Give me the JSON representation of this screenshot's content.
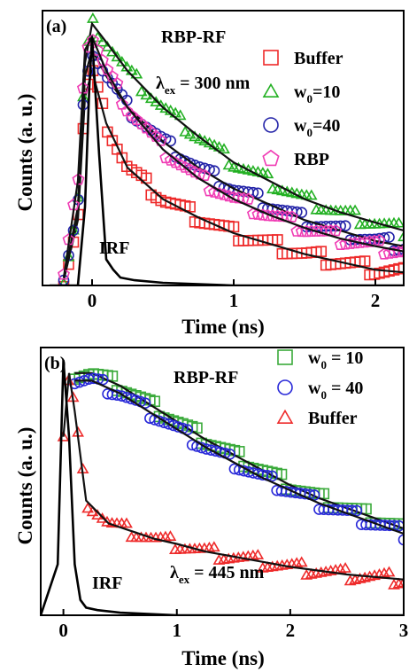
{
  "figure": {
    "panels": [
      {
        "panel_label": "(a)",
        "title": "RBP-RF",
        "excitation": {
          "lambda": "λ",
          "sub": "ex",
          "value": " = 300 nm"
        },
        "irf_label": "IRF",
        "xlabel": "Time (ns)",
        "ylabel": "Counts (a. u.)",
        "x_ticks": [
          "0",
          "1",
          "2"
        ],
        "legend": [
          {
            "label": "Buffer",
            "marker": "square",
            "color": "#ee2a2a"
          },
          {
            "label": "w",
            "sub": "0",
            "tail": "=10",
            "marker": "triangle",
            "color": "#22b022"
          },
          {
            "label": "w",
            "sub": "0",
            "tail": "=40",
            "marker": "circle",
            "color": "#2323a8"
          },
          {
            "label": "RBP",
            "marker": "pentagon",
            "color": "#f03cb4"
          }
        ]
      },
      {
        "panel_label": "(b)",
        "title": "RBP-RF",
        "excitation": {
          "lambda": "λ",
          "sub": "ex",
          "value": " = 445 nm"
        },
        "irf_label": "IRF",
        "xlabel": "Time (ns)",
        "ylabel": "Counts (a. u.)",
        "x_ticks": [
          "0",
          "1",
          "2",
          "3"
        ],
        "legend": [
          {
            "label": "w",
            "sub": "0",
            "tail": " = 10",
            "marker": "square",
            "color": "#3aaa3a"
          },
          {
            "label": "w",
            "sub": "0",
            "tail": " = 40",
            "marker": "circle",
            "color": "#2828d8"
          },
          {
            "label": "Buffer",
            "marker": "triangle",
            "color": "#ee2a2a"
          }
        ]
      }
    ]
  },
  "chart_data": [
    {
      "type": "scatter",
      "xlabel": "Time (ns)",
      "ylabel": "Counts (a. u.)",
      "xlim": [
        -0.35,
        2.2
      ],
      "ylim": [
        0,
        1.05
      ],
      "x_ticks": [
        0,
        1,
        2
      ],
      "grid": false,
      "legend_position": "top-right",
      "series": [
        {
          "name": "Buffer",
          "marker": "square",
          "color": "#ee2a2a",
          "x": [
            -0.2,
            -0.1,
            -0.05,
            0.0,
            0.1,
            0.25,
            0.5,
            0.75,
            1.0,
            1.25,
            1.5,
            1.75,
            2.0,
            2.2
          ],
          "y": [
            0.02,
            0.25,
            0.72,
            0.82,
            0.62,
            0.45,
            0.33,
            0.26,
            0.2,
            0.16,
            0.12,
            0.09,
            0.06,
            0.05
          ]
        },
        {
          "name": "w0=10",
          "marker": "triangle",
          "color": "#22b022",
          "x": [
            -0.2,
            -0.1,
            -0.05,
            0.0,
            0.1,
            0.25,
            0.5,
            0.75,
            1.0,
            1.25,
            1.5,
            1.75,
            2.0,
            2.2
          ],
          "y": [
            0.02,
            0.3,
            0.85,
            1.0,
            0.93,
            0.82,
            0.68,
            0.57,
            0.47,
            0.4,
            0.33,
            0.28,
            0.24,
            0.21
          ]
        },
        {
          "name": "w0=40",
          "marker": "circle",
          "color": "#2323a8",
          "x": [
            -0.2,
            -0.1,
            -0.05,
            0.0,
            0.1,
            0.25,
            0.5,
            0.75,
            1.0,
            1.25,
            1.5,
            1.75,
            2.0,
            2.2
          ],
          "y": [
            0.02,
            0.28,
            0.8,
            0.9,
            0.8,
            0.68,
            0.55,
            0.45,
            0.37,
            0.31,
            0.25,
            0.21,
            0.17,
            0.15
          ]
        },
        {
          "name": "RBP",
          "marker": "pentagon",
          "color": "#f03cb4",
          "x": [
            -0.2,
            -0.1,
            -0.05,
            0.0,
            0.1,
            0.25,
            0.5,
            0.75,
            1.0,
            1.25,
            1.5,
            1.75,
            2.0,
            2.2
          ],
          "y": [
            0.03,
            0.4,
            0.9,
            0.95,
            0.82,
            0.68,
            0.52,
            0.41,
            0.33,
            0.27,
            0.22,
            0.18,
            0.15,
            0.13
          ]
        },
        {
          "name": "IRF",
          "marker": "line",
          "color": "#000000",
          "x": [
            -0.3,
            -0.1,
            -0.05,
            -0.02,
            0.0,
            0.05,
            0.1,
            0.15,
            0.2,
            0.3,
            0.5,
            1.0,
            2.0,
            2.2
          ],
          "y": [
            0.0,
            0.0,
            0.3,
            0.75,
            0.95,
            0.5,
            0.1,
            0.06,
            0.03,
            0.02,
            0.01,
            0.0,
            0.0,
            0.0
          ]
        }
      ]
    },
    {
      "type": "scatter",
      "xlabel": "Time (ns)",
      "ylabel": "Counts (a. u.)",
      "xlim": [
        -0.2,
        3.0
      ],
      "ylim": [
        0,
        1.05
      ],
      "x_ticks": [
        0,
        1,
        2,
        3
      ],
      "grid": false,
      "legend_position": "top-right",
      "series": [
        {
          "name": "w0 = 10",
          "marker": "square",
          "color": "#3aaa3a",
          "x": [
            0.1,
            0.25,
            0.5,
            0.75,
            1.0,
            1.25,
            1.5,
            1.75,
            2.0,
            2.25,
            2.5,
            2.75,
            3.0
          ],
          "y": [
            0.95,
            0.95,
            0.9,
            0.83,
            0.76,
            0.69,
            0.63,
            0.57,
            0.51,
            0.46,
            0.42,
            0.38,
            0.34
          ]
        },
        {
          "name": "w0 = 40",
          "marker": "circle",
          "color": "#2828d8",
          "x": [
            0.1,
            0.25,
            0.5,
            0.75,
            1.0,
            1.25,
            1.5,
            1.75,
            2.0,
            2.25,
            2.5,
            2.75,
            3.0
          ],
          "y": [
            0.92,
            0.92,
            0.87,
            0.8,
            0.73,
            0.66,
            0.6,
            0.54,
            0.49,
            0.44,
            0.4,
            0.36,
            0.32
          ]
        },
        {
          "name": "Buffer",
          "marker": "triangle",
          "color": "#ee2a2a",
          "x": [
            0.0,
            0.05,
            0.1,
            0.2,
            0.4,
            0.6,
            0.8,
            1.0,
            1.25,
            1.5,
            2.0,
            2.5,
            3.0
          ],
          "y": [
            0.7,
            0.95,
            0.8,
            0.45,
            0.36,
            0.33,
            0.3,
            0.28,
            0.25,
            0.23,
            0.19,
            0.16,
            0.14
          ]
        },
        {
          "name": "IRF",
          "marker": "line",
          "color": "#000000",
          "x": [
            -0.2,
            -0.05,
            0.0,
            0.05,
            0.1,
            0.15,
            0.2,
            0.3,
            0.5,
            1.0,
            2.0,
            3.0
          ],
          "y": [
            0.0,
            0.2,
            1.0,
            0.7,
            0.2,
            0.06,
            0.03,
            0.02,
            0.01,
            0.0,
            0.0,
            0.0
          ]
        }
      ]
    }
  ]
}
